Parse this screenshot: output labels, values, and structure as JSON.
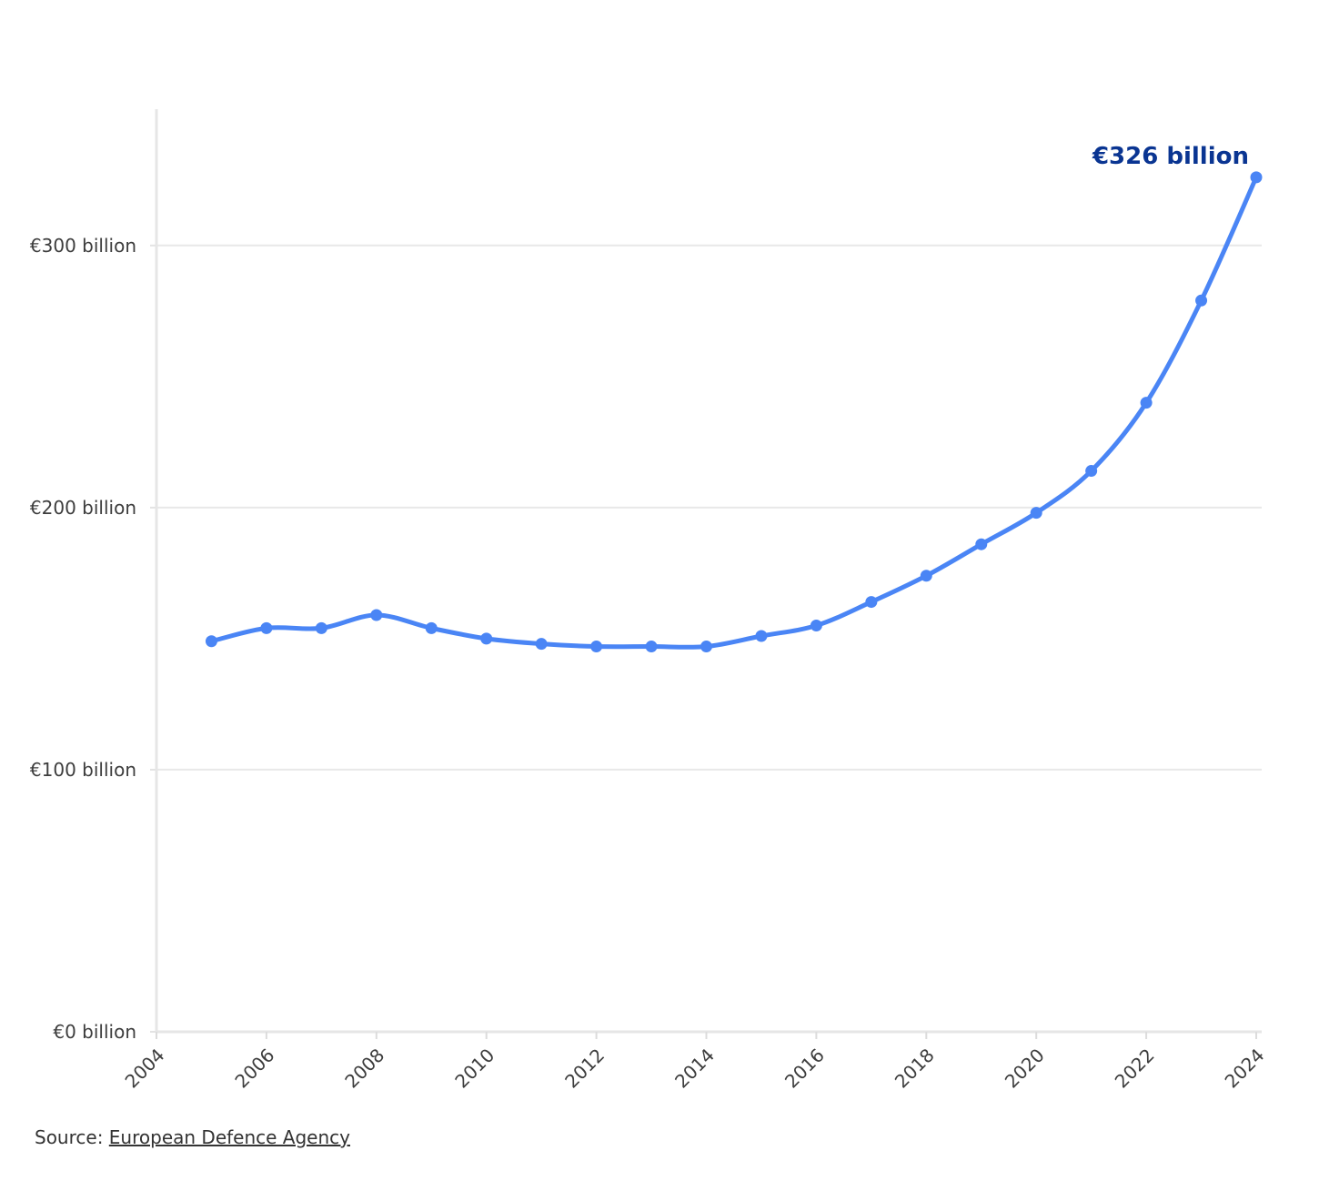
{
  "chart_data": {
    "type": "line",
    "title": "",
    "xlabel": "",
    "ylabel": "",
    "x_ticks": [
      "2004",
      "2006",
      "2008",
      "2010",
      "2012",
      "2014",
      "2016",
      "2018",
      "2020",
      "2022",
      "2024"
    ],
    "y_ticks": [
      "€0 billion",
      "€100 billion",
      "€200 billion",
      "€300 billion"
    ],
    "y_tick_values": [
      0,
      100,
      200,
      300
    ],
    "xlim": [
      2004,
      2024
    ],
    "ylim": [
      0,
      352
    ],
    "grid": true,
    "series": [
      {
        "x": [
          2005,
          2006,
          2007,
          2008,
          2009,
          2010,
          2011,
          2012,
          2013,
          2014,
          2015,
          2016,
          2017,
          2018,
          2019,
          2020,
          2021,
          2022,
          2023,
          2024
        ],
        "values": [
          149,
          154,
          154,
          159,
          154,
          150,
          148,
          147,
          147,
          147,
          151,
          155,
          164,
          174,
          186,
          198,
          214,
          240,
          279,
          326
        ],
        "color": "#4a85f5"
      }
    ],
    "annotation": {
      "text": "€326 billion",
      "x": 2024,
      "y": 326,
      "color": "#0a3592"
    }
  },
  "source": {
    "prefix": "Source: ",
    "link_text": "European Defence Agency"
  }
}
